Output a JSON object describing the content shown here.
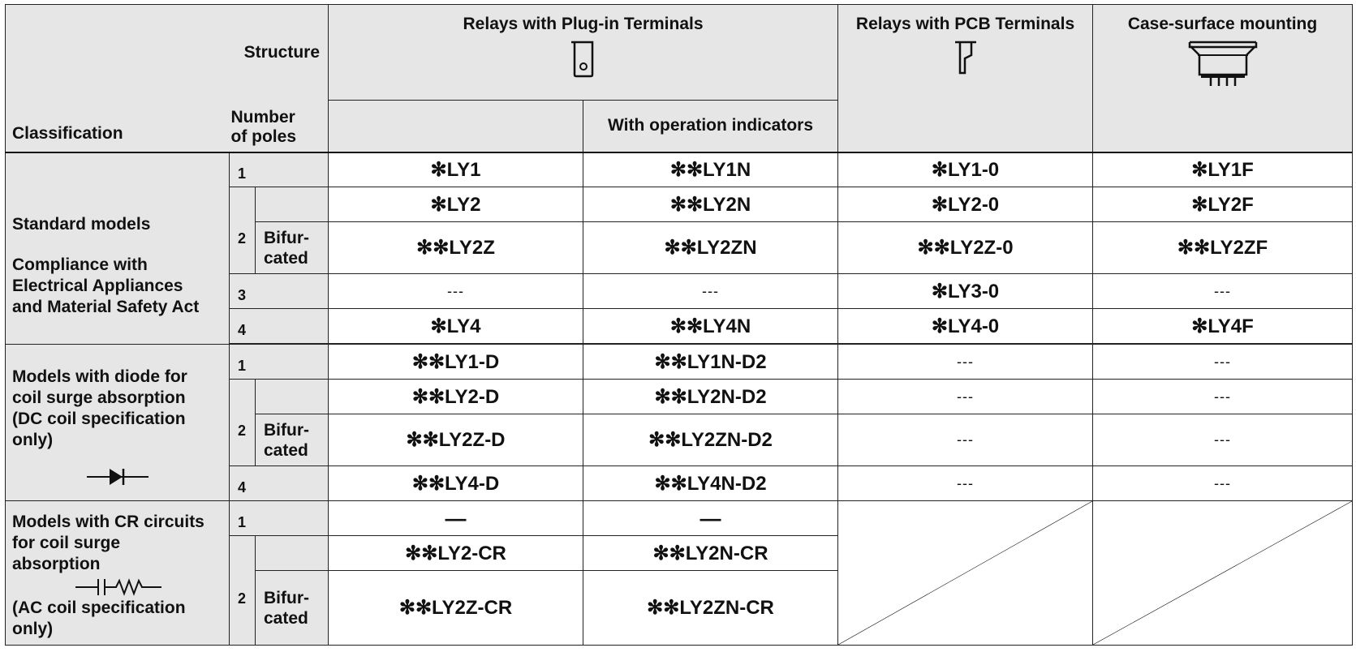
{
  "header": {
    "structure_label": "Structure",
    "classification_label": "Classification",
    "poles_label_line1": "Number",
    "poles_label_line2": "of poles",
    "col_plugin": "Relays with Plug-in Terminals",
    "col_plugin_indicators": "With operation indicators",
    "col_pcb": "Relays with PCB Terminals",
    "col_case": "Case-surface mounting",
    "icons": [
      "plug-in-terminal-icon",
      "pcb-terminal-icon",
      "case-surface-mount-icon"
    ]
  },
  "groups": [
    {
      "name": "standard",
      "label_lines": [
        "Standard models",
        "Compliance with",
        "Electrical Appliances",
        "and Material Safety Act"
      ]
    },
    {
      "name": "diode",
      "label_lines": [
        "Models with diode for",
        "coil surge absorption",
        "(DC coil specification",
        "only)"
      ],
      "symbol": "diode-symbol-icon"
    },
    {
      "name": "cr",
      "label_lines_top": [
        "Models with CR circuits",
        "for coil surge",
        "absorption"
      ],
      "label_lines_bottom": [
        "(AC coil specification",
        "only)"
      ],
      "symbol": "cr-circuit-symbol-icon"
    }
  ],
  "bifurcated_line1": "Bifur-",
  "bifurcated_line2": "cated",
  "rows": {
    "std1": {
      "poles": "1",
      "plugin": "✻LY1",
      "indicators": "✻✻LY1N",
      "pcb": "✻LY1-0",
      "case": "✻LY1F"
    },
    "std2": {
      "poles": "2",
      "plugin": "✻LY2",
      "indicators": "✻✻LY2N",
      "pcb": "✻LY2-0",
      "case": "✻LY2F"
    },
    "std2z": {
      "plugin": "✻✻LY2Z",
      "indicators": "✻✻LY2ZN",
      "pcb": "✻✻LY2Z-0",
      "case": "✻✻LY2ZF"
    },
    "std3": {
      "poles": "3",
      "plugin": "---",
      "indicators": "---",
      "pcb": "✻LY3-0",
      "case": "---"
    },
    "std4": {
      "poles": "4",
      "plugin": "✻LY4",
      "indicators": "✻✻LY4N",
      "pcb": "✻LY4-0",
      "case": "✻LY4F"
    },
    "d1": {
      "poles": "1",
      "plugin": "✻✻LY1-D",
      "indicators": "✻✻LY1N-D2",
      "pcb": "---",
      "case": "---"
    },
    "d2": {
      "poles": "2",
      "plugin": "✻✻LY2-D",
      "indicators": "✻✻LY2N-D2",
      "pcb": "---",
      "case": "---"
    },
    "d2z": {
      "plugin": "✻✻LY2Z-D",
      "indicators": "✻✻LY2ZN-D2",
      "pcb": "---",
      "case": "---"
    },
    "d4": {
      "poles": "4",
      "plugin": "✻✻LY4-D",
      "indicators": "✻✻LY4N-D2",
      "pcb": "---",
      "case": "---"
    },
    "cr1": {
      "poles": "1",
      "plugin": "—",
      "indicators": "—"
    },
    "cr2": {
      "poles": "2",
      "plugin": "✻✻LY2-CR",
      "indicators": "✻✻LY2N-CR"
    },
    "cr2z": {
      "plugin": "✻✻LY2Z-CR",
      "indicators": "✻✻LY2ZN-CR"
    }
  },
  "colors": {
    "header_bg": "#e6e6e6",
    "border": "#222222"
  }
}
